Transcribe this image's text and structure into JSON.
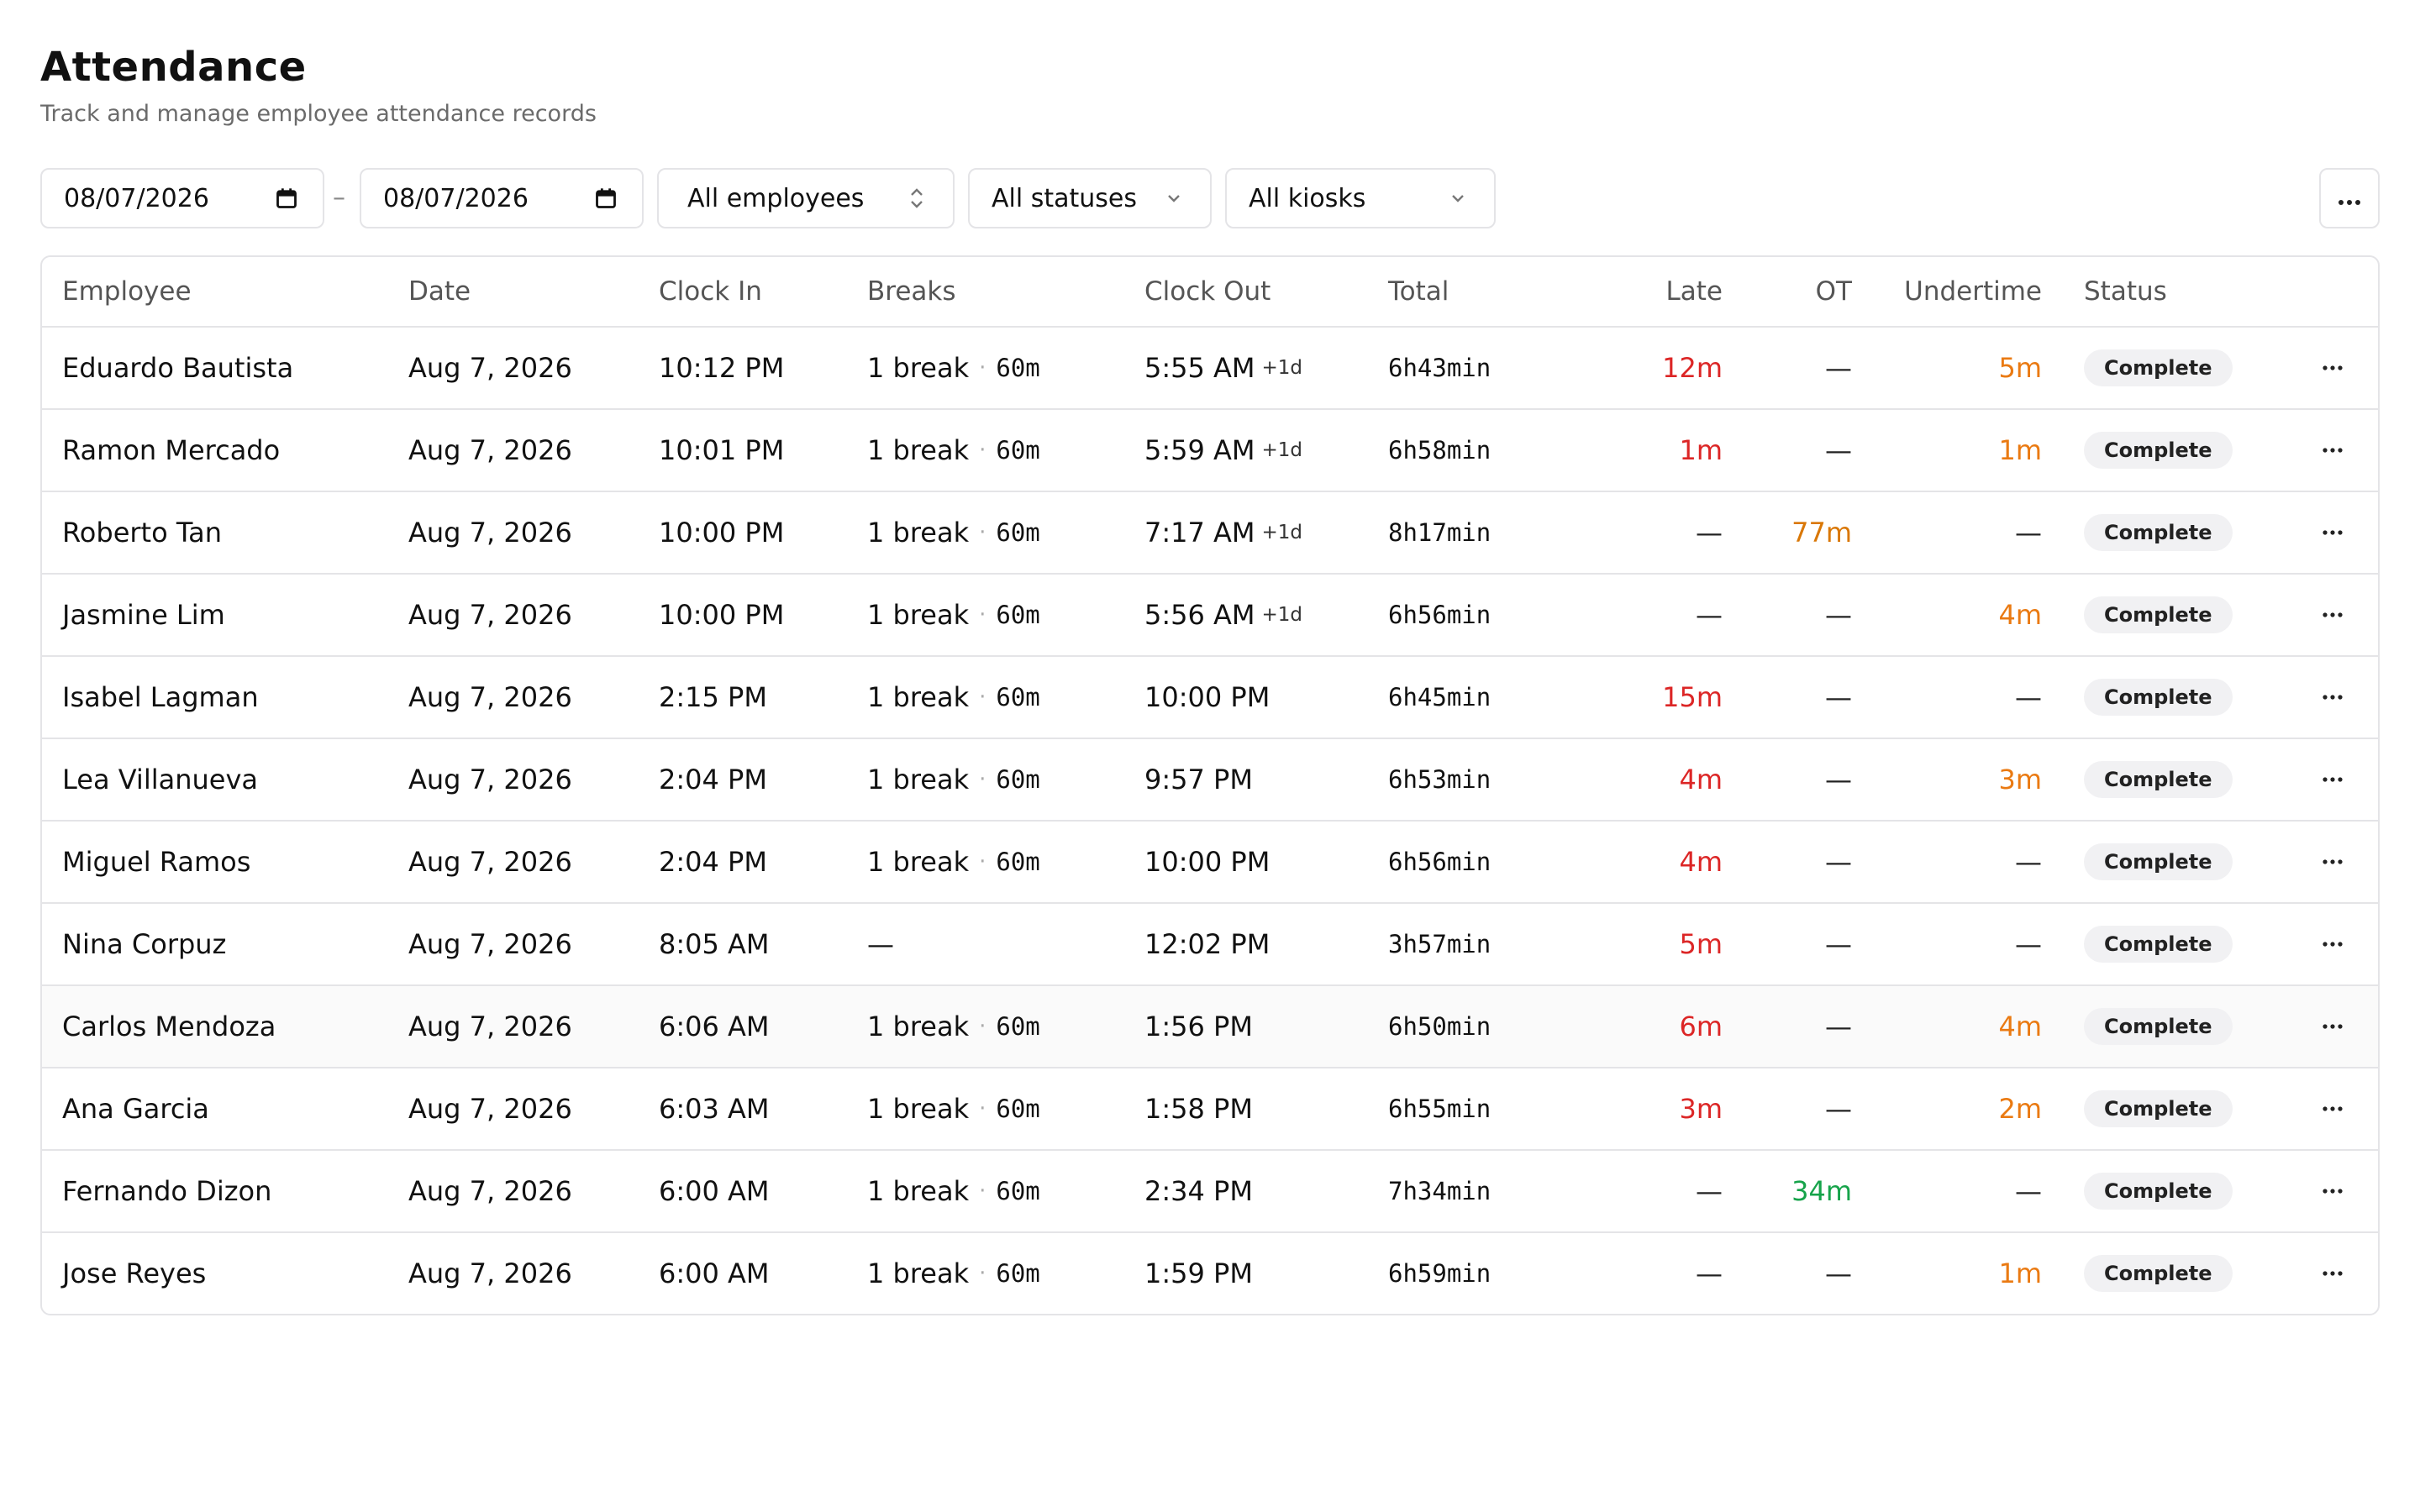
{
  "header": {
    "title": "Attendance",
    "subtitle": "Track and manage employee attendance records"
  },
  "filters": {
    "date_from": "08/07/2026",
    "date_sep": "–",
    "date_to": "08/07/2026",
    "employee": "All employees",
    "status": "All statuses",
    "kiosk": "All kiosks"
  },
  "colors": {
    "late": "#dc2626",
    "undertime": "#ea7a12",
    "overtime_amber": "#d97706",
    "overtime_green": "#16a34a"
  },
  "table": {
    "columns": [
      "Employee",
      "Date",
      "Clock In",
      "Breaks",
      "Clock Out",
      "Total",
      "Late",
      "OT",
      "Undertime",
      "Status"
    ],
    "rows": [
      {
        "employee": "Eduardo Bautista",
        "date": "Aug 7, 2026",
        "clock_in": "10:12 PM",
        "breaks": "1 break",
        "break_dur": "60m",
        "clock_out": "5:55 AM",
        "next_day": "+1d",
        "total": "6h43min",
        "late": "12m",
        "ot": "—",
        "undertime": "5m",
        "status": "Complete"
      },
      {
        "employee": "Ramon Mercado",
        "date": "Aug 7, 2026",
        "clock_in": "10:01 PM",
        "breaks": "1 break",
        "break_dur": "60m",
        "clock_out": "5:59 AM",
        "next_day": "+1d",
        "total": "6h58min",
        "late": "1m",
        "ot": "—",
        "undertime": "1m",
        "status": "Complete"
      },
      {
        "employee": "Roberto Tan",
        "date": "Aug 7, 2026",
        "clock_in": "10:00 PM",
        "breaks": "1 break",
        "break_dur": "60m",
        "clock_out": "7:17 AM",
        "next_day": "+1d",
        "total": "8h17min",
        "late": "—",
        "ot": "77m",
        "undertime": "—",
        "status": "Complete"
      },
      {
        "employee": "Jasmine Lim",
        "date": "Aug 7, 2026",
        "clock_in": "10:00 PM",
        "breaks": "1 break",
        "break_dur": "60m",
        "clock_out": "5:56 AM",
        "next_day": "+1d",
        "total": "6h56min",
        "late": "—",
        "ot": "—",
        "undertime": "4m",
        "status": "Complete"
      },
      {
        "employee": "Isabel Lagman",
        "date": "Aug 7, 2026",
        "clock_in": "2:15 PM",
        "breaks": "1 break",
        "break_dur": "60m",
        "clock_out": "10:00 PM",
        "next_day": "",
        "total": "6h45min",
        "late": "15m",
        "ot": "—",
        "undertime": "—",
        "status": "Complete"
      },
      {
        "employee": "Lea Villanueva",
        "date": "Aug 7, 2026",
        "clock_in": "2:04 PM",
        "breaks": "1 break",
        "break_dur": "60m",
        "clock_out": "9:57 PM",
        "next_day": "",
        "total": "6h53min",
        "late": "4m",
        "ot": "—",
        "undertime": "3m",
        "status": "Complete"
      },
      {
        "employee": "Miguel Ramos",
        "date": "Aug 7, 2026",
        "clock_in": "2:04 PM",
        "breaks": "1 break",
        "break_dur": "60m",
        "clock_out": "10:00 PM",
        "next_day": "",
        "total": "6h56min",
        "late": "4m",
        "ot": "—",
        "undertime": "—",
        "status": "Complete"
      },
      {
        "employee": "Nina Corpuz",
        "date": "Aug 7, 2026",
        "clock_in": "8:05 AM",
        "breaks": "—",
        "break_dur": "",
        "clock_out": "12:02 PM",
        "next_day": "",
        "total": "3h57min",
        "late": "5m",
        "ot": "—",
        "undertime": "—",
        "status": "Complete"
      },
      {
        "employee": "Carlos Mendoza",
        "date": "Aug 7, 2026",
        "clock_in": "6:06 AM",
        "breaks": "1 break",
        "break_dur": "60m",
        "clock_out": "1:56 PM",
        "next_day": "",
        "total": "6h50min",
        "late": "6m",
        "ot": "—",
        "undertime": "4m",
        "status": "Complete"
      },
      {
        "employee": "Ana Garcia",
        "date": "Aug 7, 2026",
        "clock_in": "6:03 AM",
        "breaks": "1 break",
        "break_dur": "60m",
        "clock_out": "1:58 PM",
        "next_day": "",
        "total": "6h55min",
        "late": "3m",
        "ot": "—",
        "undertime": "2m",
        "status": "Complete"
      },
      {
        "employee": "Fernando Dizon",
        "date": "Aug 7, 2026",
        "clock_in": "6:00 AM",
        "breaks": "1 break",
        "break_dur": "60m",
        "clock_out": "2:34 PM",
        "next_day": "",
        "total": "7h34min",
        "late": "—",
        "ot": "34m",
        "undertime": "—",
        "status": "Complete"
      },
      {
        "employee": "Jose Reyes",
        "date": "Aug 7, 2026",
        "clock_in": "6:00 AM",
        "breaks": "1 break",
        "break_dur": "60m",
        "clock_out": "1:59 PM",
        "next_day": "",
        "total": "6h59min",
        "late": "—",
        "ot": "—",
        "undertime": "1m",
        "status": "Complete"
      }
    ]
  }
}
